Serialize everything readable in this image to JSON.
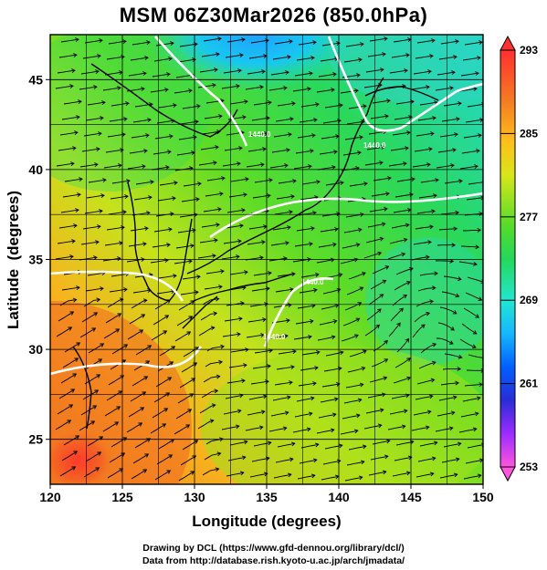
{
  "title": "MSM 06Z30Mar2026 (850.0hPa)",
  "axes": {
    "xlabel": "Longitude (degrees)",
    "ylabel": "Latitude  (degrees)",
    "x_ticks": [
      "120",
      "125",
      "130",
      "135",
      "140",
      "145",
      "150"
    ],
    "y_ticks": [
      "25",
      "30",
      "35",
      "40",
      "45"
    ],
    "x_range": [
      120,
      150
    ],
    "y_range": [
      22.5,
      47.5
    ]
  },
  "colorbar": {
    "labels": [
      "293",
      "285",
      "277",
      "269",
      "261",
      "253"
    ],
    "min": 253,
    "max": 293,
    "colors": [
      "#ff3c8c",
      "#ff55dd",
      "#9b2cff",
      "#2a2cd6",
      "#0060ff",
      "#16b7ff",
      "#22e6cf",
      "#25e05a",
      "#2fd62c",
      "#86e21e",
      "#d7e61a",
      "#ffbf1a",
      "#ff8a1a",
      "#f05020",
      "#ff3030"
    ]
  },
  "contour_labels": [
    "1440.0",
    "1440.0",
    "1440.0",
    "1440.0"
  ],
  "credits": {
    "line1": "Drawing by DCL (https://www.gfd-dennou.org/library/dcl/)",
    "line2": "Data from http://database.rish.kyoto-u.ac.jp/arch/jmadata/"
  }
}
